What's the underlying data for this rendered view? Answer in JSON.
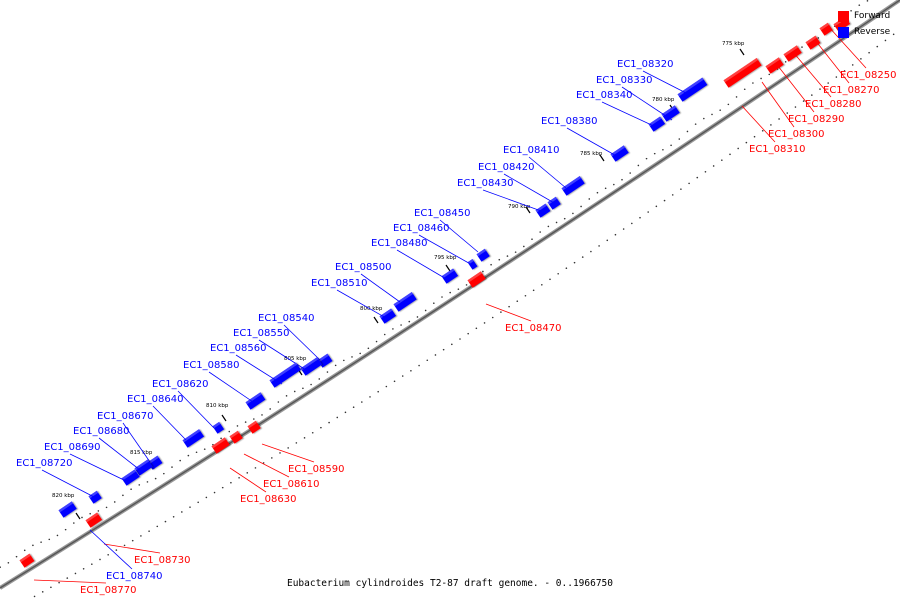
{
  "caption": "Eubacterium cylindroides T2-87 draft genome. - 0..1966750",
  "legend": [
    {
      "label": "Forward",
      "color": "#ff0000"
    },
    {
      "label": "Reverse",
      "color": "#0000ff"
    }
  ],
  "ticks": [
    "775 kbp",
    "780 kbp",
    "785 kbp",
    "790 kbp",
    "795 kbp",
    "800 kbp",
    "805 kbp",
    "810 kbp",
    "815 kbp",
    "820 kbp"
  ],
  "genes": [
    {
      "name": "EC1_08250",
      "strand": "forward"
    },
    {
      "name": "EC1_08270",
      "strand": "forward"
    },
    {
      "name": "EC1_08280",
      "strand": "forward"
    },
    {
      "name": "EC1_08290",
      "strand": "forward"
    },
    {
      "name": "EC1_08300",
      "strand": "forward"
    },
    {
      "name": "EC1_08310",
      "strand": "forward"
    },
    {
      "name": "EC1_08320",
      "strand": "reverse"
    },
    {
      "name": "EC1_08330",
      "strand": "reverse"
    },
    {
      "name": "EC1_08340",
      "strand": "reverse"
    },
    {
      "name": "EC1_08380",
      "strand": "reverse"
    },
    {
      "name": "EC1_08410",
      "strand": "reverse"
    },
    {
      "name": "EC1_08420",
      "strand": "reverse"
    },
    {
      "name": "EC1_08430",
      "strand": "reverse"
    },
    {
      "name": "EC1_08450",
      "strand": "reverse"
    },
    {
      "name": "EC1_08460",
      "strand": "reverse"
    },
    {
      "name": "EC1_08470",
      "strand": "forward"
    },
    {
      "name": "EC1_08480",
      "strand": "reverse"
    },
    {
      "name": "EC1_08500",
      "strand": "reverse"
    },
    {
      "name": "EC1_08510",
      "strand": "reverse"
    },
    {
      "name": "EC1_08540",
      "strand": "reverse"
    },
    {
      "name": "EC1_08550",
      "strand": "reverse"
    },
    {
      "name": "EC1_08560",
      "strand": "reverse"
    },
    {
      "name": "EC1_08580",
      "strand": "reverse"
    },
    {
      "name": "EC1_08590",
      "strand": "forward"
    },
    {
      "name": "EC1_08610",
      "strand": "forward"
    },
    {
      "name": "EC1_08620",
      "strand": "reverse"
    },
    {
      "name": "EC1_08630",
      "strand": "forward"
    },
    {
      "name": "EC1_08640",
      "strand": "reverse"
    },
    {
      "name": "EC1_08670",
      "strand": "reverse"
    },
    {
      "name": "EC1_08680",
      "strand": "reverse"
    },
    {
      "name": "EC1_08690",
      "strand": "reverse"
    },
    {
      "name": "EC1_08720",
      "strand": "reverse"
    },
    {
      "name": "EC1_08730",
      "strand": "forward"
    },
    {
      "name": "EC1_08740",
      "strand": "reverse"
    },
    {
      "name": "EC1_08770",
      "strand": "forward"
    }
  ]
}
